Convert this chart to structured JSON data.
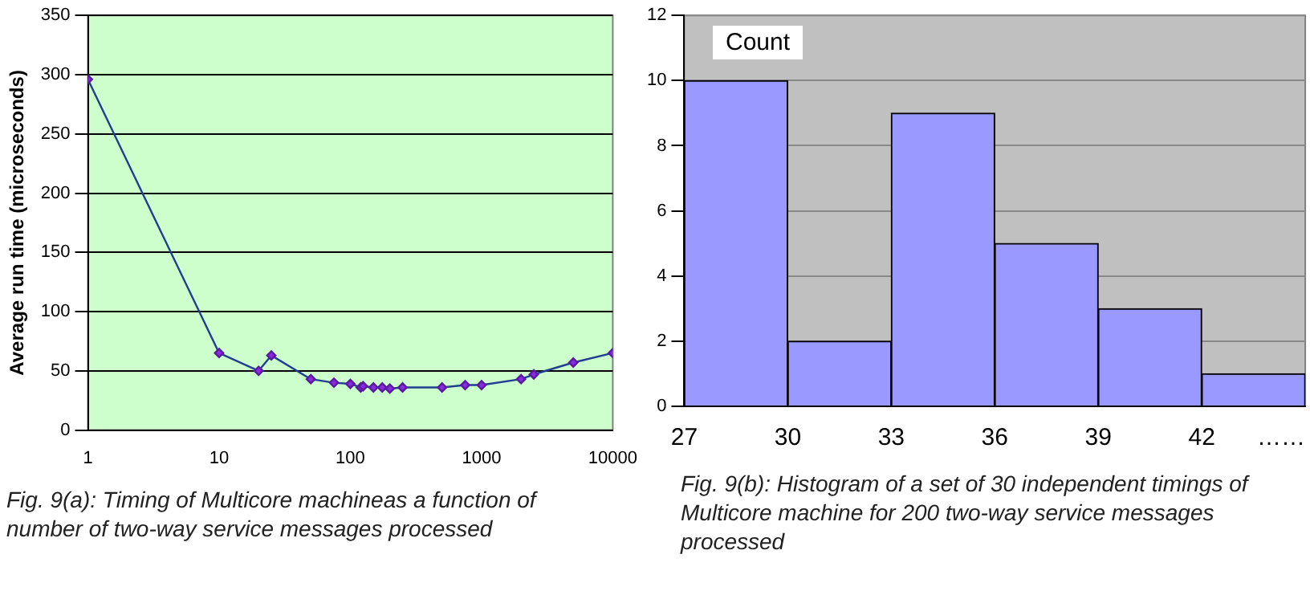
{
  "chart_data": [
    {
      "type": "line",
      "ylabel": "Average run time (microseconds)",
      "log": "x",
      "x": [
        1,
        10,
        20,
        25,
        50,
        75,
        100,
        120,
        125,
        150,
        175,
        200,
        250,
        500,
        750,
        1000,
        2000,
        2500,
        5000,
        10000
      ],
      "series": [
        {
          "color": "#1f3f8f",
          "values": [
            296,
            65,
            50,
            63,
            43,
            40,
            39,
            36,
            37,
            36,
            36,
            35,
            36,
            36,
            38,
            38,
            43,
            47,
            57,
            65
          ]
        }
      ],
      "xlim": [
        1,
        10000
      ],
      "xticks": [
        1,
        10,
        100,
        1000,
        10000
      ],
      "ylim": [
        0,
        350
      ],
      "yticks": [
        0,
        50,
        100,
        150,
        200,
        250,
        300,
        350
      ],
      "grid": "y",
      "marker": "diamond",
      "legend": false,
      "annotations": [
        "Fig. 9(a): Timing of Multicore machineas a function of number of two-way service messages processed"
      ]
    },
    {
      "type": "histogram",
      "bins": [
        27,
        30,
        33,
        36,
        39,
        42,
        45
      ],
      "values": [
        10,
        2,
        9,
        5,
        3,
        1
      ],
      "color": "#9999ff",
      "xlim": [
        27,
        45
      ],
      "xticks": [
        27,
        30,
        33,
        36,
        39,
        42,
        {
          "value": 44.3,
          "label": "……"
        }
      ],
      "ylim": [
        0,
        12
      ],
      "yticks": [
        0,
        2,
        4,
        6,
        8,
        10,
        12
      ],
      "grid": "y",
      "legend": false,
      "annotations": [
        "Count",
        "Fig. 9(b): Histogram of a set of 30 independent timings of Multicore machine for 200 two-way service messages processed"
      ]
    }
  ]
}
